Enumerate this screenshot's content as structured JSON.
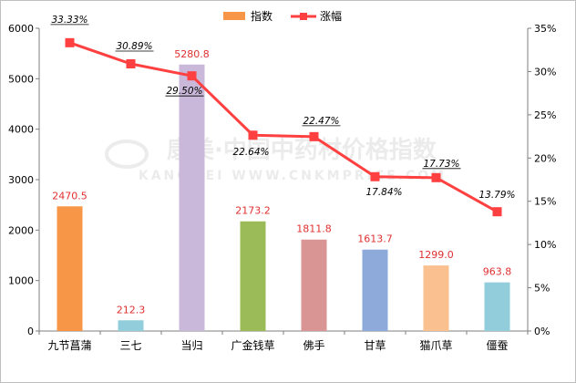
{
  "chart_data": {
    "type": "bar",
    "categories": [
      "九节菖蒲",
      "三七",
      "当归",
      "广金钱草",
      "佛手",
      "甘草",
      "猫爪草",
      "僵蚕"
    ],
    "series": [
      {
        "name": "指数",
        "type": "bar",
        "axis": "left",
        "values": [
          2470.5,
          212.3,
          5280.8,
          2173.2,
          1811.8,
          1613.7,
          1299.0,
          963.8
        ],
        "value_labels": [
          "2470.5",
          "212.3",
          "5280.8",
          "2173.2",
          "1811.8",
          "1613.7",
          "1299.0",
          "963.8"
        ],
        "colors": [
          "#f79646",
          "#92cddc",
          "#c9b8d9",
          "#9bbb59",
          "#d99594",
          "#8eaadb",
          "#fac090",
          "#92cddc"
        ]
      },
      {
        "name": "涨幅",
        "type": "line",
        "axis": "right",
        "values": [
          33.33,
          30.89,
          29.5,
          22.64,
          22.47,
          17.84,
          17.73,
          13.79
        ],
        "value_labels": [
          "33.33%",
          "30.89%",
          "29.50%",
          "22.64%",
          "22.47%",
          "17.84%",
          "17.73%",
          "13.79%"
        ],
        "label_underlined": [
          true,
          true,
          true,
          false,
          true,
          false,
          true,
          false
        ],
        "color": "#ff4040"
      }
    ],
    "y_left": {
      "min": 0,
      "max": 6000,
      "ticks": [
        "0",
        "1000",
        "2000",
        "3000",
        "4000",
        "5000",
        "6000"
      ]
    },
    "y_right": {
      "min": 0,
      "max": 35,
      "ticks": [
        "0%",
        "5%",
        "10%",
        "15%",
        "20%",
        "25%",
        "30%",
        "35%"
      ]
    },
    "legend": {
      "placement": "top-center",
      "entries": [
        "指数",
        "涨幅"
      ]
    },
    "grid": false
  },
  "watermark": {
    "line1": "康美·中国中药材价格指数",
    "line2": "KANGMEI WWW.CNKMPRICE.COM"
  }
}
